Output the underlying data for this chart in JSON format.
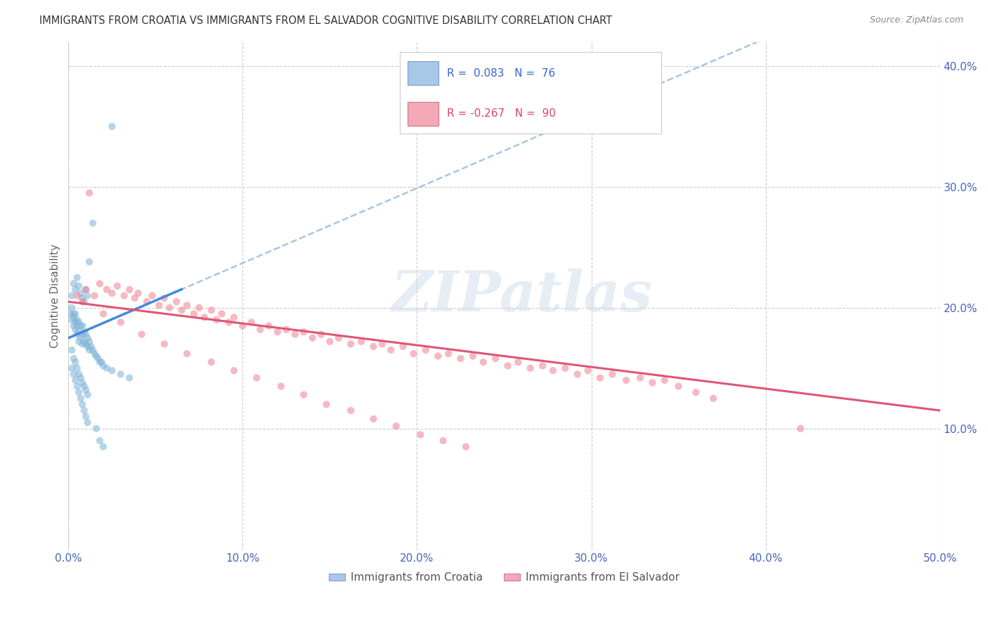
{
  "title": "IMMIGRANTS FROM CROATIA VS IMMIGRANTS FROM EL SALVADOR COGNITIVE DISABILITY CORRELATION CHART",
  "source": "Source: ZipAtlas.com",
  "ylabel": "Cognitive Disability",
  "xlim": [
    0.0,
    0.5
  ],
  "ylim": [
    0.0,
    0.42
  ],
  "xticks": [
    0.0,
    0.1,
    0.2,
    0.3,
    0.4,
    0.5
  ],
  "yticks": [
    0.1,
    0.2,
    0.3,
    0.4
  ],
  "xtick_labels": [
    "0.0%",
    "10.0%",
    "20.0%",
    "30.0%",
    "40.0%",
    "50.0%"
  ],
  "ytick_labels": [
    "10.0%",
    "20.0%",
    "30.0%",
    "40.0%"
  ],
  "color_croatia": "#7db3d8",
  "color_el_salvador": "#f08090",
  "R_croatia": 0.083,
  "N_croatia": 76,
  "R_el_salvador": -0.267,
  "N_el_salvador": 90,
  "legend_label_croatia": "Immigrants from Croatia",
  "legend_label_el_salvador": "Immigrants from El Salvador",
  "watermark": "ZIPatlas",
  "background_color": "#ffffff",
  "grid_color": "#cccccc",
  "title_color": "#333333",
  "axis_tick_color": "#4466bb",
  "scatter_alpha": 0.55,
  "scatter_size": 55,
  "croatia_x": [
    0.001,
    0.002,
    0.002,
    0.003,
    0.003,
    0.003,
    0.004,
    0.004,
    0.004,
    0.005,
    0.005,
    0.005,
    0.006,
    0.006,
    0.006,
    0.007,
    0.007,
    0.008,
    0.008,
    0.008,
    0.009,
    0.009,
    0.01,
    0.01,
    0.011,
    0.011,
    0.012,
    0.012,
    0.013,
    0.014,
    0.015,
    0.016,
    0.017,
    0.018,
    0.019,
    0.02,
    0.022,
    0.025,
    0.03,
    0.035,
    0.002,
    0.003,
    0.004,
    0.005,
    0.006,
    0.007,
    0.008,
    0.009,
    0.01,
    0.011,
    0.002,
    0.003,
    0.004,
    0.005,
    0.006,
    0.007,
    0.008,
    0.009,
    0.01,
    0.011,
    0.002,
    0.003,
    0.004,
    0.005,
    0.006,
    0.007,
    0.008,
    0.009,
    0.01,
    0.011,
    0.012,
    0.014,
    0.016,
    0.018,
    0.02,
    0.025
  ],
  "croatia_y": [
    0.195,
    0.2,
    0.19,
    0.195,
    0.185,
    0.192,
    0.195,
    0.188,
    0.182,
    0.19,
    0.185,
    0.178,
    0.188,
    0.18,
    0.172,
    0.185,
    0.175,
    0.185,
    0.178,
    0.17,
    0.18,
    0.172,
    0.178,
    0.17,
    0.175,
    0.168,
    0.172,
    0.165,
    0.168,
    0.165,
    0.162,
    0.16,
    0.158,
    0.155,
    0.155,
    0.152,
    0.15,
    0.148,
    0.145,
    0.142,
    0.165,
    0.158,
    0.155,
    0.15,
    0.145,
    0.142,
    0.138,
    0.135,
    0.132,
    0.128,
    0.15,
    0.145,
    0.14,
    0.135,
    0.13,
    0.125,
    0.12,
    0.115,
    0.11,
    0.105,
    0.21,
    0.22,
    0.215,
    0.225,
    0.218,
    0.212,
    0.208,
    0.205,
    0.215,
    0.21,
    0.238,
    0.27,
    0.1,
    0.09,
    0.085,
    0.35
  ],
  "el_salvador_x": [
    0.005,
    0.01,
    0.015,
    0.018,
    0.022,
    0.025,
    0.028,
    0.032,
    0.035,
    0.038,
    0.04,
    0.045,
    0.048,
    0.052,
    0.055,
    0.058,
    0.062,
    0.065,
    0.068,
    0.072,
    0.075,
    0.078,
    0.082,
    0.085,
    0.088,
    0.092,
    0.095,
    0.1,
    0.105,
    0.11,
    0.115,
    0.12,
    0.125,
    0.13,
    0.135,
    0.14,
    0.145,
    0.15,
    0.155,
    0.162,
    0.168,
    0.175,
    0.18,
    0.185,
    0.192,
    0.198,
    0.205,
    0.212,
    0.218,
    0.225,
    0.232,
    0.238,
    0.245,
    0.252,
    0.258,
    0.265,
    0.272,
    0.278,
    0.285,
    0.292,
    0.298,
    0.305,
    0.312,
    0.32,
    0.328,
    0.335,
    0.342,
    0.35,
    0.36,
    0.37,
    0.008,
    0.012,
    0.02,
    0.03,
    0.042,
    0.055,
    0.068,
    0.082,
    0.095,
    0.108,
    0.122,
    0.135,
    0.148,
    0.162,
    0.175,
    0.188,
    0.202,
    0.215,
    0.228,
    0.42
  ],
  "el_salvador_y": [
    0.21,
    0.215,
    0.21,
    0.22,
    0.215,
    0.212,
    0.218,
    0.21,
    0.215,
    0.208,
    0.212,
    0.205,
    0.21,
    0.202,
    0.208,
    0.2,
    0.205,
    0.198,
    0.202,
    0.195,
    0.2,
    0.192,
    0.198,
    0.19,
    0.195,
    0.188,
    0.192,
    0.185,
    0.188,
    0.182,
    0.185,
    0.18,
    0.182,
    0.178,
    0.18,
    0.175,
    0.178,
    0.172,
    0.175,
    0.17,
    0.172,
    0.168,
    0.17,
    0.165,
    0.168,
    0.162,
    0.165,
    0.16,
    0.162,
    0.158,
    0.16,
    0.155,
    0.158,
    0.152,
    0.155,
    0.15,
    0.152,
    0.148,
    0.15,
    0.145,
    0.148,
    0.142,
    0.145,
    0.14,
    0.142,
    0.138,
    0.14,
    0.135,
    0.13,
    0.125,
    0.205,
    0.295,
    0.195,
    0.188,
    0.178,
    0.17,
    0.162,
    0.155,
    0.148,
    0.142,
    0.135,
    0.128,
    0.12,
    0.115,
    0.108,
    0.102,
    0.095,
    0.09,
    0.085,
    0.1
  ],
  "trendline_croatia_color": "#4488dd",
  "trendline_croatia_dash_color": "#99bbdd",
  "trendline_el_salvador_color": "#e05575",
  "trendline_intercept_croatia": 0.175,
  "trendline_slope_croatia": 0.62,
  "trendline_intercept_el_salvador": 0.205,
  "trendline_slope_el_salvador": -0.18
}
